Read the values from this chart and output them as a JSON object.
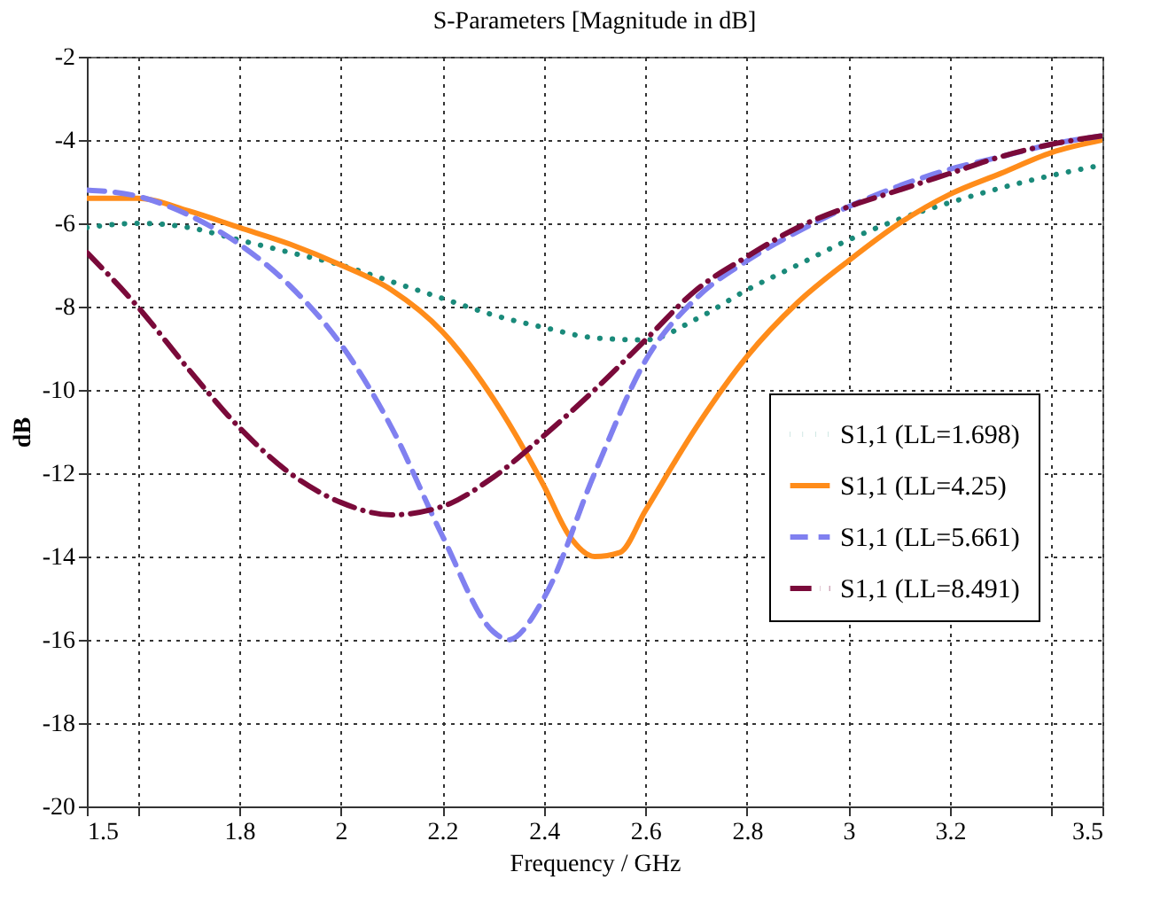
{
  "chart_data": {
    "type": "line",
    "title": "S-Parameters [Magnitude in dB]",
    "xlabel": "Frequency / GHz",
    "ylabel": "dB",
    "xlim": [
      1.5,
      3.5
    ],
    "xticks": [
      1.5,
      {
        "value": 1.6,
        "label": null
      },
      1.8,
      2,
      2.2,
      2.4,
      2.6,
      2.8,
      3,
      3.2,
      {
        "value": 3.4,
        "label": null
      },
      3.5
    ],
    "ylim": [
      -20,
      -2
    ],
    "yticks": [
      -20,
      -18,
      -16,
      -14,
      -12,
      -10,
      -8,
      -6,
      -4,
      -2
    ],
    "grid": true,
    "legend": "right",
    "series": [
      {
        "name": "S1,1 (LL=1.698)",
        "color": "#1a8a7a",
        "line_style": "dotted",
        "x": [
          1.5,
          1.6,
          1.7,
          1.8,
          1.9,
          2.0,
          2.1,
          2.2,
          2.3,
          2.4,
          2.5,
          2.6,
          2.7,
          2.8,
          2.9,
          3.0,
          3.1,
          3.2,
          3.3,
          3.4,
          3.5
        ],
        "values": [
          -6.1,
          -6.0,
          -6.1,
          -6.4,
          -6.7,
          -7.0,
          -7.4,
          -7.8,
          -8.2,
          -8.5,
          -8.75,
          -8.8,
          -8.3,
          -7.6,
          -7.0,
          -6.4,
          -5.9,
          -5.5,
          -5.15,
          -4.85,
          -4.6
        ]
      },
      {
        "name": "S1,1 (LL=4.25)",
        "color": "#ff8c1a",
        "line_style": "solid",
        "x": [
          1.5,
          1.6,
          1.7,
          1.8,
          1.9,
          2.0,
          2.1,
          2.2,
          2.3,
          2.4,
          2.45,
          2.5,
          2.55,
          2.6,
          2.7,
          2.8,
          2.9,
          3.0,
          3.1,
          3.2,
          3.3,
          3.4,
          3.5
        ],
        "values": [
          -5.4,
          -5.4,
          -5.7,
          -6.1,
          -6.5,
          -7.0,
          -7.6,
          -8.6,
          -10.2,
          -12.3,
          -13.5,
          -14.0,
          -13.9,
          -12.9,
          -10.9,
          -9.2,
          -7.9,
          -6.9,
          -6.0,
          -5.3,
          -4.8,
          -4.3,
          -4.0
        ]
      },
      {
        "name": "S1,1 (LL=5.661)",
        "color": "#8080f0",
        "line_style": "dashed",
        "x": [
          1.5,
          1.6,
          1.7,
          1.8,
          1.9,
          2.0,
          2.1,
          2.2,
          2.3,
          2.33,
          2.4,
          2.5,
          2.6,
          2.7,
          2.8,
          2.9,
          3.0,
          3.1,
          3.2,
          3.3,
          3.4,
          3.5
        ],
        "values": [
          -5.2,
          -5.35,
          -5.8,
          -6.5,
          -7.5,
          -8.9,
          -10.9,
          -13.5,
          -15.8,
          -16.0,
          -15.0,
          -12.0,
          -9.3,
          -7.8,
          -6.9,
          -6.2,
          -5.6,
          -5.1,
          -4.7,
          -4.4,
          -4.1,
          -3.9
        ]
      },
      {
        "name": "S1,1 (LL=8.491)",
        "color": "#7a0a3a",
        "line_style": "dashdot",
        "x": [
          1.5,
          1.6,
          1.7,
          1.8,
          1.9,
          2.0,
          2.1,
          2.2,
          2.3,
          2.4,
          2.5,
          2.6,
          2.7,
          2.8,
          2.9,
          3.0,
          3.1,
          3.2,
          3.3,
          3.4,
          3.5
        ],
        "values": [
          -6.7,
          -8.0,
          -9.5,
          -10.9,
          -12.0,
          -12.7,
          -13.0,
          -12.8,
          -12.1,
          -11.1,
          -10.0,
          -8.8,
          -7.6,
          -6.8,
          -6.1,
          -5.6,
          -5.2,
          -4.8,
          -4.4,
          -4.1,
          -3.9
        ]
      }
    ]
  }
}
